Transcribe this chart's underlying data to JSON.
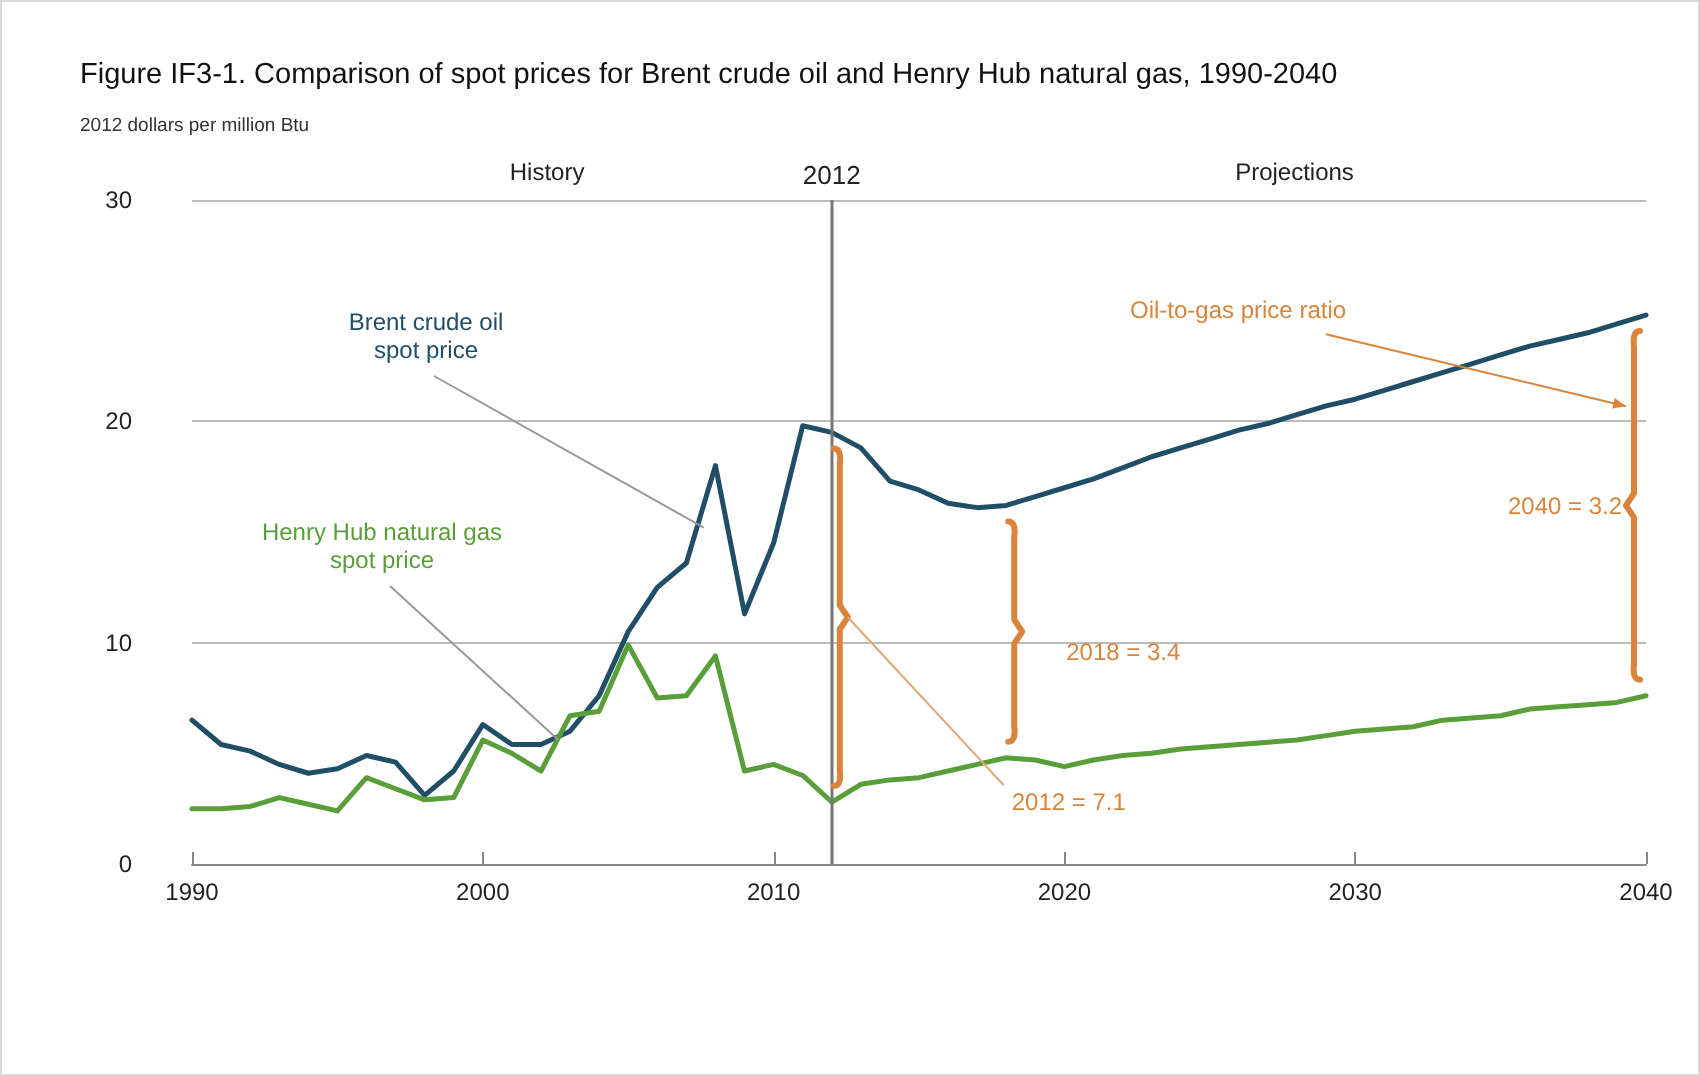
{
  "chart_data": {
    "type": "line",
    "title": "Figure IF3-1. Comparison of spot prices for Brent crude oil and Henry Hub natural gas, 1990-2040",
    "subtitle": "2012 dollars per million Btu",
    "x": [
      1990,
      1991,
      1992,
      1993,
      1994,
      1995,
      1996,
      1997,
      1998,
      1999,
      2000,
      2001,
      2002,
      2003,
      2004,
      2005,
      2006,
      2007,
      2008,
      2009,
      2010,
      2011,
      2012,
      2013,
      2014,
      2015,
      2016,
      2017,
      2018,
      2019,
      2020,
      2021,
      2022,
      2023,
      2024,
      2025,
      2026,
      2027,
      2028,
      2029,
      2030,
      2031,
      2032,
      2033,
      2034,
      2035,
      2036,
      2037,
      2038,
      2039,
      2040
    ],
    "series": [
      {
        "name": "Brent crude oil spot price",
        "color": "#1f4e66",
        "values": [
          6.5,
          5.4,
          5.1,
          4.5,
          4.1,
          4.3,
          4.9,
          4.6,
          3.1,
          4.2,
          6.3,
          5.4,
          5.4,
          6.0,
          7.6,
          10.5,
          12.5,
          13.6,
          18.0,
          11.3,
          14.5,
          19.8,
          19.5,
          18.8,
          17.3,
          16.9,
          16.3,
          16.1,
          16.2,
          16.6,
          17.0,
          17.4,
          17.9,
          18.4,
          18.8,
          19.2,
          19.6,
          19.9,
          20.3,
          20.7,
          21.0,
          21.4,
          21.8,
          22.2,
          22.6,
          23.0,
          23.4,
          23.7,
          24.0,
          24.4,
          24.8
        ]
      },
      {
        "name": "Henry Hub natural gas spot price",
        "color": "#5a9e3a",
        "values": [
          2.5,
          2.5,
          2.6,
          3.0,
          2.7,
          2.4,
          3.9,
          3.4,
          2.9,
          3.0,
          5.6,
          5.0,
          4.2,
          6.7,
          6.9,
          9.9,
          7.5,
          7.6,
          9.4,
          4.2,
          4.5,
          4.0,
          2.8,
          3.6,
          3.8,
          3.9,
          4.2,
          4.5,
          4.8,
          4.7,
          4.4,
          4.7,
          4.9,
          5.0,
          5.2,
          5.3,
          5.4,
          5.5,
          5.6,
          5.8,
          6.0,
          6.1,
          6.2,
          6.5,
          6.6,
          6.7,
          7.0,
          7.1,
          7.2,
          7.3,
          7.6
        ]
      }
    ],
    "xlim": [
      1990,
      2040
    ],
    "xticks": [
      1990,
      2000,
      2010,
      2020,
      2030,
      2040
    ],
    "ylim": [
      0,
      30
    ],
    "yticks": [
      0,
      10,
      20,
      30
    ],
    "grid": "y",
    "legend": false,
    "marker": "none",
    "line_style": "solid",
    "ref_lines": [
      {
        "axis": "x",
        "value": 2012,
        "label": "2012",
        "color": "#777777"
      }
    ],
    "annotations": [
      "History",
      "Projections",
      "Oil-to-gas price ratio",
      "2012 = 7.1",
      "2018 = 3.4",
      "2040 = 3.2"
    ]
  }
}
